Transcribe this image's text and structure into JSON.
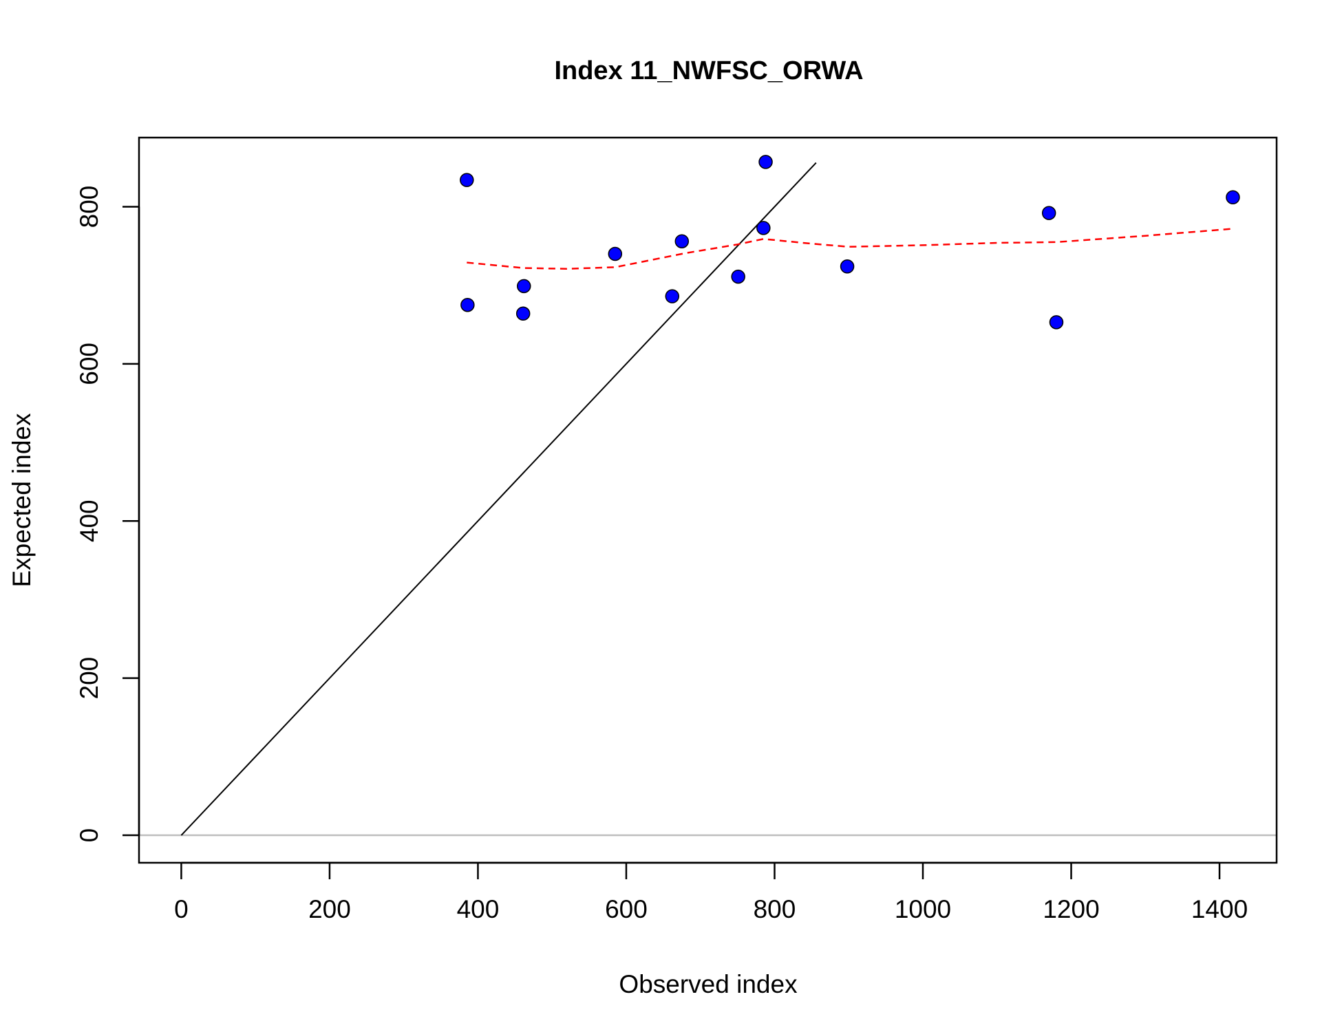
{
  "chart_data": {
    "type": "scatter",
    "title": "Index 11_NWFSC_ORWA",
    "xlabel": "Observed index",
    "ylabel": "Expected index",
    "xlim": [
      -57,
      1477
    ],
    "ylim": [
      -35,
      888
    ],
    "x_ticks": [
      0,
      200,
      400,
      600,
      800,
      1000,
      1200,
      1400
    ],
    "y_ticks": [
      0,
      200,
      400,
      600,
      800
    ],
    "points": [
      {
        "x": 385,
        "y": 834
      },
      {
        "x": 386,
        "y": 675
      },
      {
        "x": 462,
        "y": 699
      },
      {
        "x": 461,
        "y": 664
      },
      {
        "x": 585,
        "y": 740
      },
      {
        "x": 662,
        "y": 686
      },
      {
        "x": 675,
        "y": 756
      },
      {
        "x": 751,
        "y": 711
      },
      {
        "x": 785,
        "y": 773
      },
      {
        "x": 788,
        "y": 857
      },
      {
        "x": 898,
        "y": 724
      },
      {
        "x": 1170,
        "y": 792
      },
      {
        "x": 1180,
        "y": 653
      },
      {
        "x": 1418,
        "y": 812
      }
    ],
    "reference_line": {
      "x": [
        0,
        856
      ],
      "y": [
        0,
        856
      ]
    },
    "zero_line_y": 0,
    "smoother": {
      "x": [
        385,
        462,
        520,
        585,
        680,
        750,
        785,
        850,
        900,
        1000,
        1100,
        1180,
        1300,
        1418
      ],
      "y": [
        729,
        722,
        721,
        723,
        741,
        752,
        759,
        753,
        749,
        751,
        754,
        755,
        763,
        772
      ]
    },
    "colors": {
      "points_fill": "#0000ff",
      "points_stroke": "#000000",
      "reference_line": "#000000",
      "zero_line": "#bebebe",
      "smoother": "#ff0000"
    }
  }
}
